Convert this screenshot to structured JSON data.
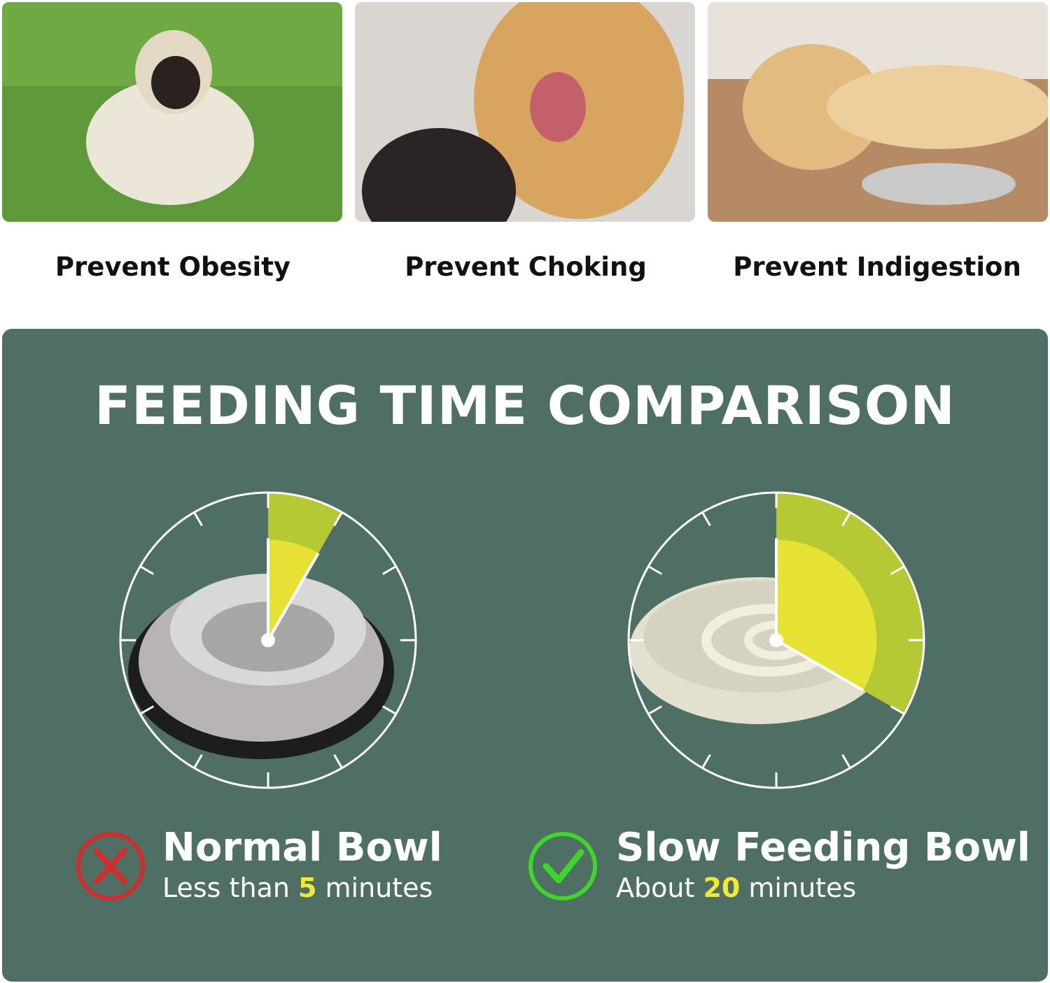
{
  "colors": {
    "panel": "#4f6e64",
    "wedge": "#b5c934",
    "highlight": "#f5e934",
    "cross": "#d42b2b",
    "check": "#3ed62a"
  },
  "benefits": [
    {
      "caption": "Prevent Obesity",
      "image": "pug-on-grass"
    },
    {
      "caption": "Prevent Choking",
      "image": "golden-retriever-mouth-check"
    },
    {
      "caption": "Prevent Indigestion",
      "image": "labrador-lying-by-bowl"
    }
  ],
  "comparison": {
    "title": "FEEDING TIME COMPARISON",
    "bowls": [
      {
        "name": "Normal Bowl",
        "sub_prefix": "Less than ",
        "value": "5",
        "sub_suffix": " minutes",
        "minutes": 5,
        "icon": "cross-icon",
        "image": "stainless-steel-bowl"
      },
      {
        "name": "Slow Feeding Bowl",
        "sub_prefix": "About ",
        "value": "20",
        "sub_suffix": " minutes",
        "minutes": 20,
        "icon": "check-icon",
        "image": "slow-feeder-maze-bowl"
      }
    ]
  }
}
